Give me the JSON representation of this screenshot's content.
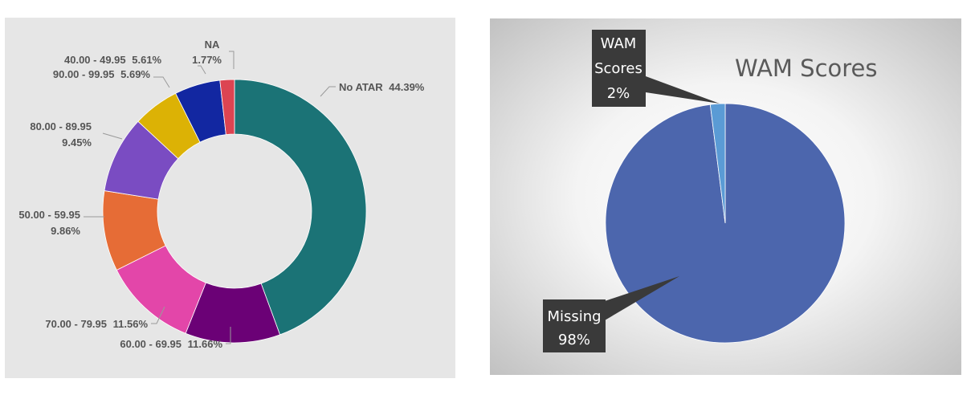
{
  "chart_data": [
    {
      "type": "pie",
      "variant": "donut",
      "legend": "none",
      "labels_position": "outside with leader lines",
      "slices": [
        {
          "label": "No ATAR",
          "value": 44.39,
          "value_label": "44.39%",
          "color": "#1b7376"
        },
        {
          "label": "60.00 - 69.95",
          "value": 11.66,
          "value_label": "11.66%",
          "color": "#6b0176"
        },
        {
          "label": "70.00 - 79.95",
          "value": 11.56,
          "value_label": "11.56%",
          "color": "#e346a9"
        },
        {
          "label": "50.00 - 59.95",
          "value": 9.86,
          "value_label": "9.86%",
          "color": "#e66c36"
        },
        {
          "label": "80.00 - 89.95",
          "value": 9.45,
          "value_label": "9.45%",
          "color": "#7a4cc2"
        },
        {
          "label": "90.00 - 99.95",
          "value": 5.69,
          "value_label": "5.69%",
          "color": "#dcb205"
        },
        {
          "label": "40.00 - 49.95",
          "value": 5.61,
          "value_label": "5.61%",
          "color": "#1227a1"
        },
        {
          "label": "NA",
          "value": 1.77,
          "value_label": "1.77%",
          "color": "#dc4452"
        }
      ]
    },
    {
      "type": "pie",
      "title": "WAM Scores",
      "legend": "none",
      "labels_position": "callouts",
      "slices": [
        {
          "label": "Missing",
          "value": 98,
          "value_label": "98%",
          "color": "#4c66ad"
        },
        {
          "label": "WAM Scores",
          "value": 2,
          "value_label": "2%",
          "color": "#5a9bd5"
        }
      ]
    }
  ]
}
